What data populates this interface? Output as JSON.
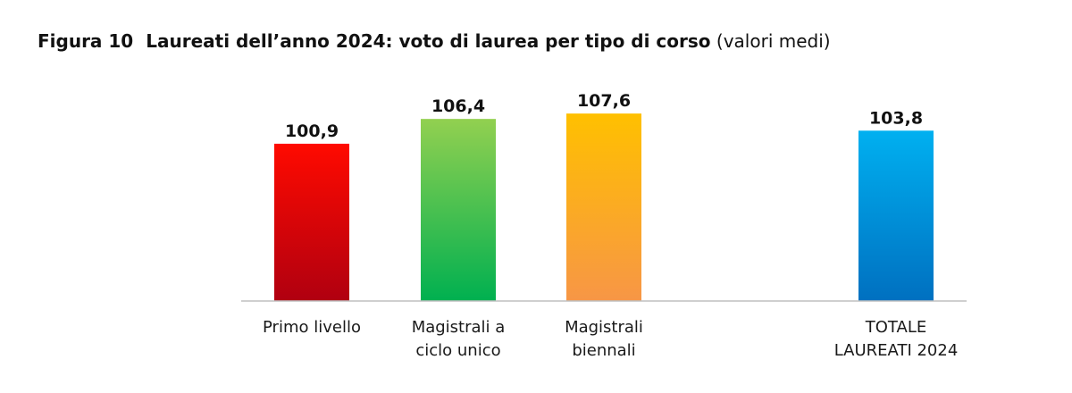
{
  "header": {
    "figure": "Figura 10",
    "title": "Laureati dell’anno 2024: voto di laurea per tipo di corso",
    "subtitle": "(valori medi)"
  },
  "chart_data": {
    "type": "bar",
    "title": "Laureati dell’anno 2024: voto di laurea per tipo di corso (valori medi)",
    "categories": [
      [
        "Primo livello"
      ],
      [
        "Magistrali a",
        "ciclo unico"
      ],
      [
        "Magistrali",
        "biennali"
      ],
      [
        "TOTALE",
        "LAUREATI 2024"
      ]
    ],
    "values": [
      100.9,
      106.4,
      107.6,
      103.8
    ],
    "value_labels": [
      "100,9",
      "106,4",
      "107,6",
      "103,8"
    ],
    "xlabel": "",
    "ylabel": "",
    "ylim": [
      66,
      110
    ],
    "grid": false,
    "legend": "none",
    "bar_colors": [
      [
        "#ff0a00",
        "#b00010"
      ],
      [
        "#92d050",
        "#00b050"
      ],
      [
        "#ffc000",
        "#f79646"
      ],
      [
        "#00b0f0",
        "#0070c0"
      ]
    ],
    "axis_color": "#bfbfbf"
  }
}
